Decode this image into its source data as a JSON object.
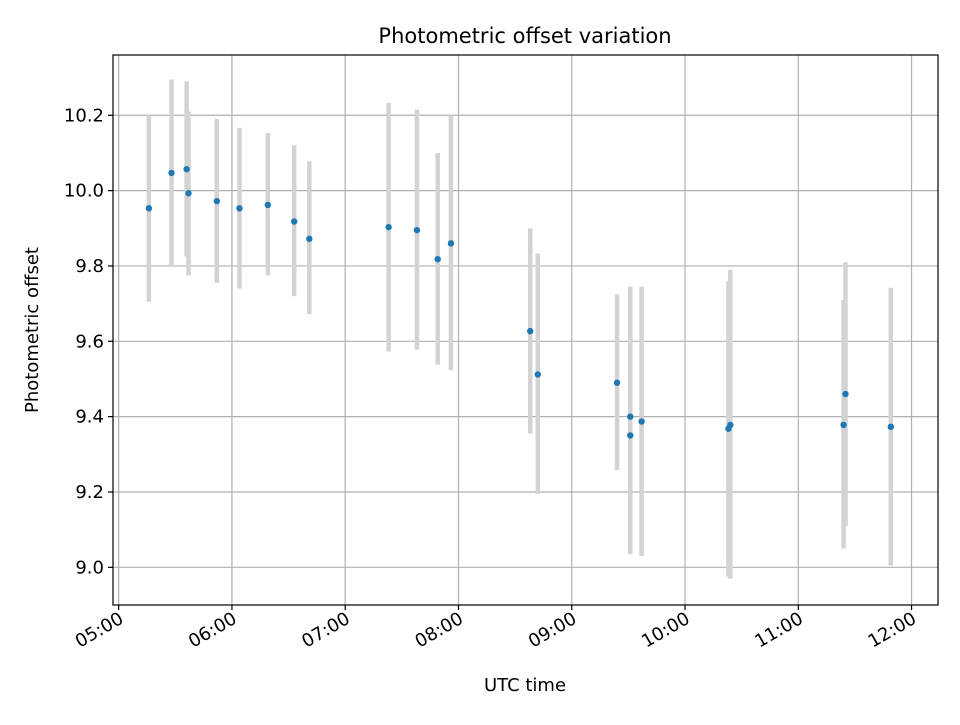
{
  "chart_data": {
    "type": "scatter",
    "title": "Photometric offset variation",
    "xlabel": "UTC time",
    "ylabel": "Photometric offset",
    "x_axis": {
      "unit": "time",
      "range": [
        "04:57",
        "12:14"
      ],
      "tick_labels": [
        "05:00",
        "06:00",
        "07:00",
        "08:00",
        "09:00",
        "10:00",
        "11:00",
        "12:00"
      ]
    },
    "y_axis": {
      "range": [
        8.9,
        10.36
      ],
      "tick_values": [
        9.0,
        9.2,
        9.4,
        9.6,
        9.8,
        10.0,
        10.2
      ],
      "tick_labels": [
        "9.0",
        "9.2",
        "9.4",
        "9.6",
        "9.8",
        "10.0",
        "10.2"
      ]
    },
    "grid": true,
    "colors": {
      "point": "#1f77b4",
      "errorbar": "#d3d3d3",
      "grid": "#b0b0b0"
    },
    "series": [
      {
        "points": [
          {
            "x": "05:16",
            "y": 9.953,
            "ymin": 9.705,
            "ymax": 10.2
          },
          {
            "x": "05:28",
            "y": 10.047,
            "ymin": 9.8,
            "ymax": 10.295
          },
          {
            "x": "05:36",
            "y": 10.057,
            "ymin": 9.825,
            "ymax": 10.29
          },
          {
            "x": "05:37",
            "y": 9.993,
            "ymin": 9.775,
            "ymax": 10.21
          },
          {
            "x": "05:52",
            "y": 9.972,
            "ymin": 9.755,
            "ymax": 10.19
          },
          {
            "x": "06:04",
            "y": 9.953,
            "ymin": 9.74,
            "ymax": 10.167
          },
          {
            "x": "06:19",
            "y": 9.962,
            "ymin": 9.775,
            "ymax": 10.153
          },
          {
            "x": "06:33",
            "y": 9.918,
            "ymin": 9.72,
            "ymax": 10.12
          },
          {
            "x": "06:41",
            "y": 9.872,
            "ymin": 9.672,
            "ymax": 10.078
          },
          {
            "x": "07:23",
            "y": 9.903,
            "ymin": 9.573,
            "ymax": 10.233
          },
          {
            "x": "07:38",
            "y": 9.895,
            "ymin": 9.578,
            "ymax": 10.215
          },
          {
            "x": "07:49",
            "y": 9.818,
            "ymin": 9.538,
            "ymax": 10.1
          },
          {
            "x": "07:56",
            "y": 9.86,
            "ymin": 9.523,
            "ymax": 10.2
          },
          {
            "x": "08:38",
            "y": 9.627,
            "ymin": 9.355,
            "ymax": 9.9
          },
          {
            "x": "08:42",
            "y": 9.512,
            "ymin": 9.195,
            "ymax": 9.833
          },
          {
            "x": "09:24",
            "y": 9.49,
            "ymin": 9.258,
            "ymax": 9.725
          },
          {
            "x": "09:31",
            "y": 9.4,
            "ymin": 9.04,
            "ymax": 9.745
          },
          {
            "x": "09:31",
            "y": 9.35,
            "ymin": 9.035,
            "ymax": 9.668
          },
          {
            "x": "09:37",
            "y": 9.387,
            "ymin": 9.03,
            "ymax": 9.745
          },
          {
            "x": "10:23",
            "y": 9.368,
            "ymin": 8.975,
            "ymax": 9.76
          },
          {
            "x": "10:24",
            "y": 9.378,
            "ymin": 8.97,
            "ymax": 9.79
          },
          {
            "x": "11:24",
            "y": 9.378,
            "ymin": 9.05,
            "ymax": 9.71
          },
          {
            "x": "11:25",
            "y": 9.46,
            "ymin": 9.11,
            "ymax": 9.81
          },
          {
            "x": "11:49",
            "y": 9.373,
            "ymin": 9.005,
            "ymax": 9.742
          }
        ]
      }
    ]
  }
}
